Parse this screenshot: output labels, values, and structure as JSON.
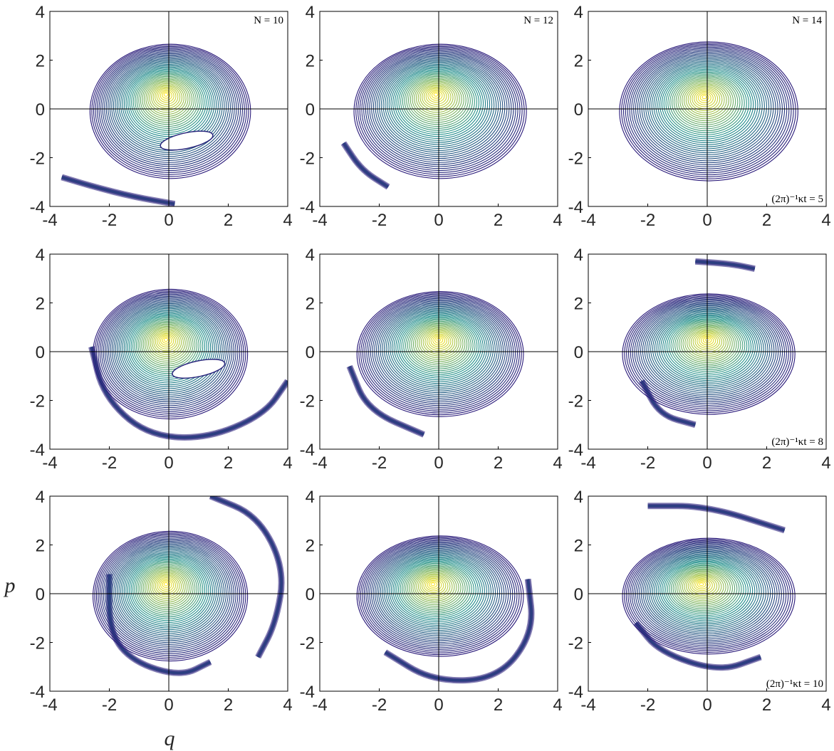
{
  "figure": {
    "xlabel": "q",
    "ylabel": "p"
  },
  "colors": {
    "contour_low": "#2a1a7a",
    "contour_mid": "#21918c",
    "contour_high": "#fde725",
    "center_line": "#000000",
    "frame": "#000000"
  },
  "chart_data": [
    {
      "type": "contour",
      "row": 1,
      "col": 1,
      "xlim": [
        -4,
        4
      ],
      "ylim": [
        -4,
        4
      ],
      "xticks": [
        -4,
        -2,
        0,
        2,
        4
      ],
      "yticks": [
        -4,
        -2,
        0,
        2,
        4
      ],
      "annotation": "N = 10",
      "peak": [
        -0.1,
        0.6
      ],
      "rx": 2.7,
      "ry": 2.9,
      "hole": true,
      "tails": [
        {
          "x": [
            -3.6,
            -2.5,
            -1.2,
            0.2
          ],
          "y": [
            -2.8,
            -3.2,
            -3.6,
            -3.9
          ]
        }
      ]
    },
    {
      "type": "contour",
      "row": 1,
      "col": 2,
      "xlim": [
        -4,
        4
      ],
      "ylim": [
        -4,
        4
      ],
      "xticks": [
        -4,
        -2,
        0,
        2,
        4
      ],
      "yticks": [
        -4,
        -2,
        0,
        2,
        4
      ],
      "annotation": "N = 12",
      "peak": [
        -0.1,
        0.6
      ],
      "rx": 2.9,
      "ry": 2.9,
      "hole": false,
      "tails": [
        {
          "x": [
            -3.2,
            -2.6,
            -1.7
          ],
          "y": [
            -1.4,
            -2.5,
            -3.2
          ]
        }
      ]
    },
    {
      "type": "contour",
      "row": 1,
      "col": 3,
      "xlim": [
        -4,
        4
      ],
      "ylim": [
        -4,
        4
      ],
      "xticks": [
        -4,
        -2,
        0,
        2,
        4
      ],
      "yticks": [
        -4,
        -2,
        0,
        2,
        4
      ],
      "annotation": "N = 14",
      "annotation2": "(2π)⁻¹κt = 5",
      "peak": [
        -0.1,
        0.5
      ],
      "rx": 3.0,
      "ry": 3.0,
      "hole": false,
      "tails": []
    },
    {
      "type": "contour",
      "row": 2,
      "col": 1,
      "xlim": [
        -4,
        4
      ],
      "ylim": [
        -4,
        4
      ],
      "xticks": [
        -4,
        -2,
        0,
        2,
        4
      ],
      "yticks": [
        -4,
        -2,
        0,
        2,
        4
      ],
      "annotation": "",
      "peak": [
        -0.1,
        0.5
      ],
      "rx": 2.6,
      "ry": 2.8,
      "hole": true,
      "tails": [
        {
          "x": [
            -2.6,
            -2.2,
            -0.8,
            1.2,
            3.2,
            4.0
          ],
          "y": [
            0.2,
            -1.8,
            -3.4,
            -3.6,
            -2.6,
            -1.2
          ]
        }
      ]
    },
    {
      "type": "contour",
      "row": 2,
      "col": 2,
      "xlim": [
        -4,
        4
      ],
      "ylim": [
        -4,
        4
      ],
      "xticks": [
        -4,
        -2,
        0,
        2,
        4
      ],
      "yticks": [
        -4,
        -2,
        0,
        2,
        4
      ],
      "annotation": "",
      "peak": [
        0.0,
        0.5
      ],
      "rx": 2.8,
      "ry": 2.7,
      "hole": false,
      "tails": [
        {
          "x": [
            -3.0,
            -2.4,
            -0.5
          ],
          "y": [
            -0.6,
            -2.4,
            -3.4
          ]
        }
      ]
    },
    {
      "type": "contour",
      "row": 2,
      "col": 3,
      "xlim": [
        -4,
        4
      ],
      "ylim": [
        -4,
        4
      ],
      "xticks": [
        -4,
        -2,
        0,
        2,
        4
      ],
      "yticks": [
        -4,
        -2,
        0,
        2,
        4
      ],
      "annotation": "",
      "annotation2": "(2π)⁻¹κt = 8",
      "peak": [
        0.0,
        0.5
      ],
      "rx": 2.9,
      "ry": 2.6,
      "hole": false,
      "tails": [
        {
          "x": [
            -2.2,
            -1.6,
            -0.4
          ],
          "y": [
            -1.2,
            -2.6,
            -3.0
          ]
        },
        {
          "x": [
            -0.4,
            0.8,
            1.6
          ],
          "y": [
            3.7,
            3.6,
            3.4
          ]
        }
      ]
    },
    {
      "type": "contour",
      "row": 3,
      "col": 1,
      "xlim": [
        -4,
        4
      ],
      "ylim": [
        -4,
        4
      ],
      "xticks": [
        -4,
        -2,
        0,
        2,
        4
      ],
      "yticks": [
        -4,
        -2,
        0,
        2,
        4
      ],
      "annotation": "",
      "peak": [
        -0.1,
        0.4
      ],
      "rx": 2.6,
      "ry": 2.8,
      "hole": false,
      "tails": [
        {
          "x": [
            -2.0,
            -2.0,
            -1.2,
            0.4,
            1.4
          ],
          "y": [
            0.8,
            -1.6,
            -2.8,
            -3.4,
            -2.8
          ]
        },
        {
          "x": [
            1.4,
            3.0,
            3.9,
            3.6,
            3.0
          ],
          "y": [
            4.0,
            3.2,
            1.0,
            -1.2,
            -2.6
          ]
        }
      ]
    },
    {
      "type": "contour",
      "row": 3,
      "col": 2,
      "xlim": [
        -4,
        4
      ],
      "ylim": [
        -4,
        4
      ],
      "xticks": [
        -4,
        -2,
        0,
        2,
        4
      ],
      "yticks": [
        -4,
        -2,
        0,
        2,
        4
      ],
      "annotation": "",
      "peak": [
        -0.2,
        0.4
      ],
      "rx": 2.8,
      "ry": 2.6,
      "hole": false,
      "tails": [
        {
          "x": [
            -1.8,
            -0.2,
            2.0,
            3.2,
            3.0
          ],
          "y": [
            -2.4,
            -3.6,
            -3.5,
            -1.6,
            0.6
          ]
        }
      ]
    },
    {
      "type": "contour",
      "row": 3,
      "col": 3,
      "xlim": [
        -4,
        4
      ],
      "ylim": [
        -4,
        4
      ],
      "xticks": [
        -4,
        -2,
        0,
        2,
        4
      ],
      "yticks": [
        -4,
        -2,
        0,
        2,
        4
      ],
      "annotation": "",
      "annotation2": "(2π)⁻¹κt = 10",
      "peak": [
        -0.2,
        0.4
      ],
      "rx": 2.9,
      "ry": 2.5,
      "hole": false,
      "tails": [
        {
          "x": [
            -2.4,
            -1.6,
            0.4,
            1.8
          ],
          "y": [
            -1.2,
            -2.4,
            -3.2,
            -2.6
          ]
        },
        {
          "x": [
            -2.0,
            0.0,
            2.6
          ],
          "y": [
            3.6,
            3.6,
            2.6
          ]
        }
      ]
    }
  ]
}
